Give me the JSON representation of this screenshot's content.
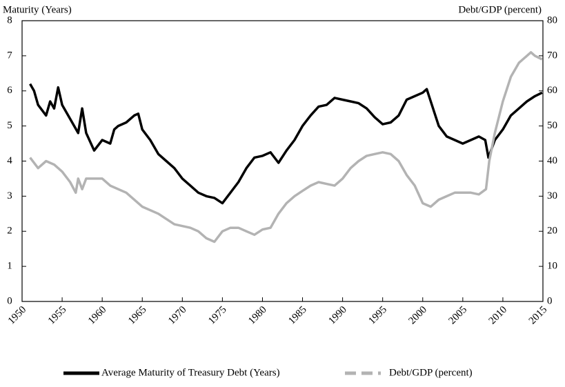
{
  "chart_data": {
    "type": "line",
    "ylabel": "Maturity (Years)",
    "y2label": "Debt/GDP (percent)",
    "xlim": [
      1950,
      2015
    ],
    "xticks": [
      1950,
      1955,
      1960,
      1965,
      1970,
      1975,
      1980,
      1985,
      1990,
      1995,
      2000,
      2005,
      2010,
      2015
    ],
    "ylim": [
      0,
      8
    ],
    "yticks": [
      0,
      1,
      2,
      3,
      4,
      5,
      6,
      7,
      8
    ],
    "y2lim": [
      0,
      80
    ],
    "y2ticks": [
      0,
      10,
      20,
      30,
      40,
      50,
      60,
      70,
      80
    ],
    "series": [
      {
        "name": "Average Maturity of Treasury Debt (Years)",
        "color": "#000000",
        "dash": false,
        "x": [
          1951,
          1951.5,
          1952,
          1953,
          1953.5,
          1954,
          1954.5,
          1955,
          1956,
          1957,
          1957.5,
          1958,
          1959,
          1960,
          1961,
          1961.5,
          1962,
          1963,
          1964,
          1964.5,
          1965,
          1966,
          1967,
          1968,
          1969,
          1970,
          1971,
          1972,
          1973,
          1974,
          1975,
          1976,
          1977,
          1978,
          1979,
          1980,
          1981,
          1982,
          1983,
          1984,
          1985,
          1986,
          1987,
          1988,
          1989,
          1990,
          1991,
          1992,
          1993,
          1994,
          1995,
          1996,
          1997,
          1998,
          1999,
          2000,
          2000.5,
          2001,
          2002,
          2003,
          2004,
          2005,
          2006,
          2007,
          2007.8,
          2008.2,
          2009,
          2010,
          2011,
          2012,
          2013,
          2014,
          2014.9
        ],
        "values": [
          6.2,
          6.0,
          5.6,
          5.3,
          5.7,
          5.5,
          6.1,
          5.6,
          5.2,
          4.8,
          5.5,
          4.8,
          4.3,
          4.6,
          4.5,
          4.9,
          5.0,
          5.1,
          5.3,
          5.35,
          4.9,
          4.6,
          4.2,
          4.0,
          3.8,
          3.5,
          3.3,
          3.1,
          3.0,
          2.95,
          2.8,
          3.1,
          3.4,
          3.8,
          4.1,
          4.15,
          4.25,
          3.95,
          4.3,
          4.6,
          5.0,
          5.3,
          5.55,
          5.6,
          5.8,
          5.75,
          5.7,
          5.65,
          5.5,
          5.25,
          5.05,
          5.1,
          5.3,
          5.75,
          5.85,
          5.95,
          6.05,
          5.7,
          5.0,
          4.7,
          4.6,
          4.5,
          4.6,
          4.7,
          4.6,
          4.1,
          4.6,
          4.9,
          5.3,
          5.5,
          5.7,
          5.85,
          5.95
        ]
      },
      {
        "name": "Debt/GDP (percent)",
        "color": "#b3b3b3",
        "dash": true,
        "axis": "y2",
        "x": [
          1951,
          1952,
          1953,
          1954,
          1955,
          1956,
          1956.7,
          1957,
          1957.5,
          1958,
          1960,
          1961,
          1963,
          1965,
          1967,
          1969,
          1971,
          1972,
          1973,
          1974,
          1975,
          1976,
          1977,
          1978,
          1979,
          1980,
          1981,
          1982,
          1983,
          1984,
          1985,
          1986,
          1987,
          1988,
          1989,
          1990,
          1991,
          1992,
          1993,
          1994,
          1995,
          1996,
          1997,
          1998,
          1999,
          2000,
          2001,
          2002,
          2003,
          2004,
          2005,
          2006,
          2007,
          2007.9,
          2008.3,
          2009,
          2010,
          2011,
          2012,
          2013,
          2013.5,
          2014,
          2014.9
        ],
        "values": [
          41,
          38,
          40,
          39,
          37,
          34,
          31,
          35,
          32,
          35,
          35,
          33,
          31,
          27,
          25,
          22,
          21,
          20,
          18,
          17,
          20,
          21,
          21,
          20,
          19,
          20.5,
          21,
          25,
          28,
          30,
          31.5,
          33,
          34,
          33.5,
          33,
          35,
          38,
          40,
          41.5,
          42,
          42.5,
          42,
          40,
          36,
          33,
          28,
          27,
          29,
          30,
          31,
          31,
          31,
          30.5,
          32,
          40,
          48,
          57,
          64,
          68,
          70,
          71,
          70,
          69
        ]
      }
    ]
  }
}
